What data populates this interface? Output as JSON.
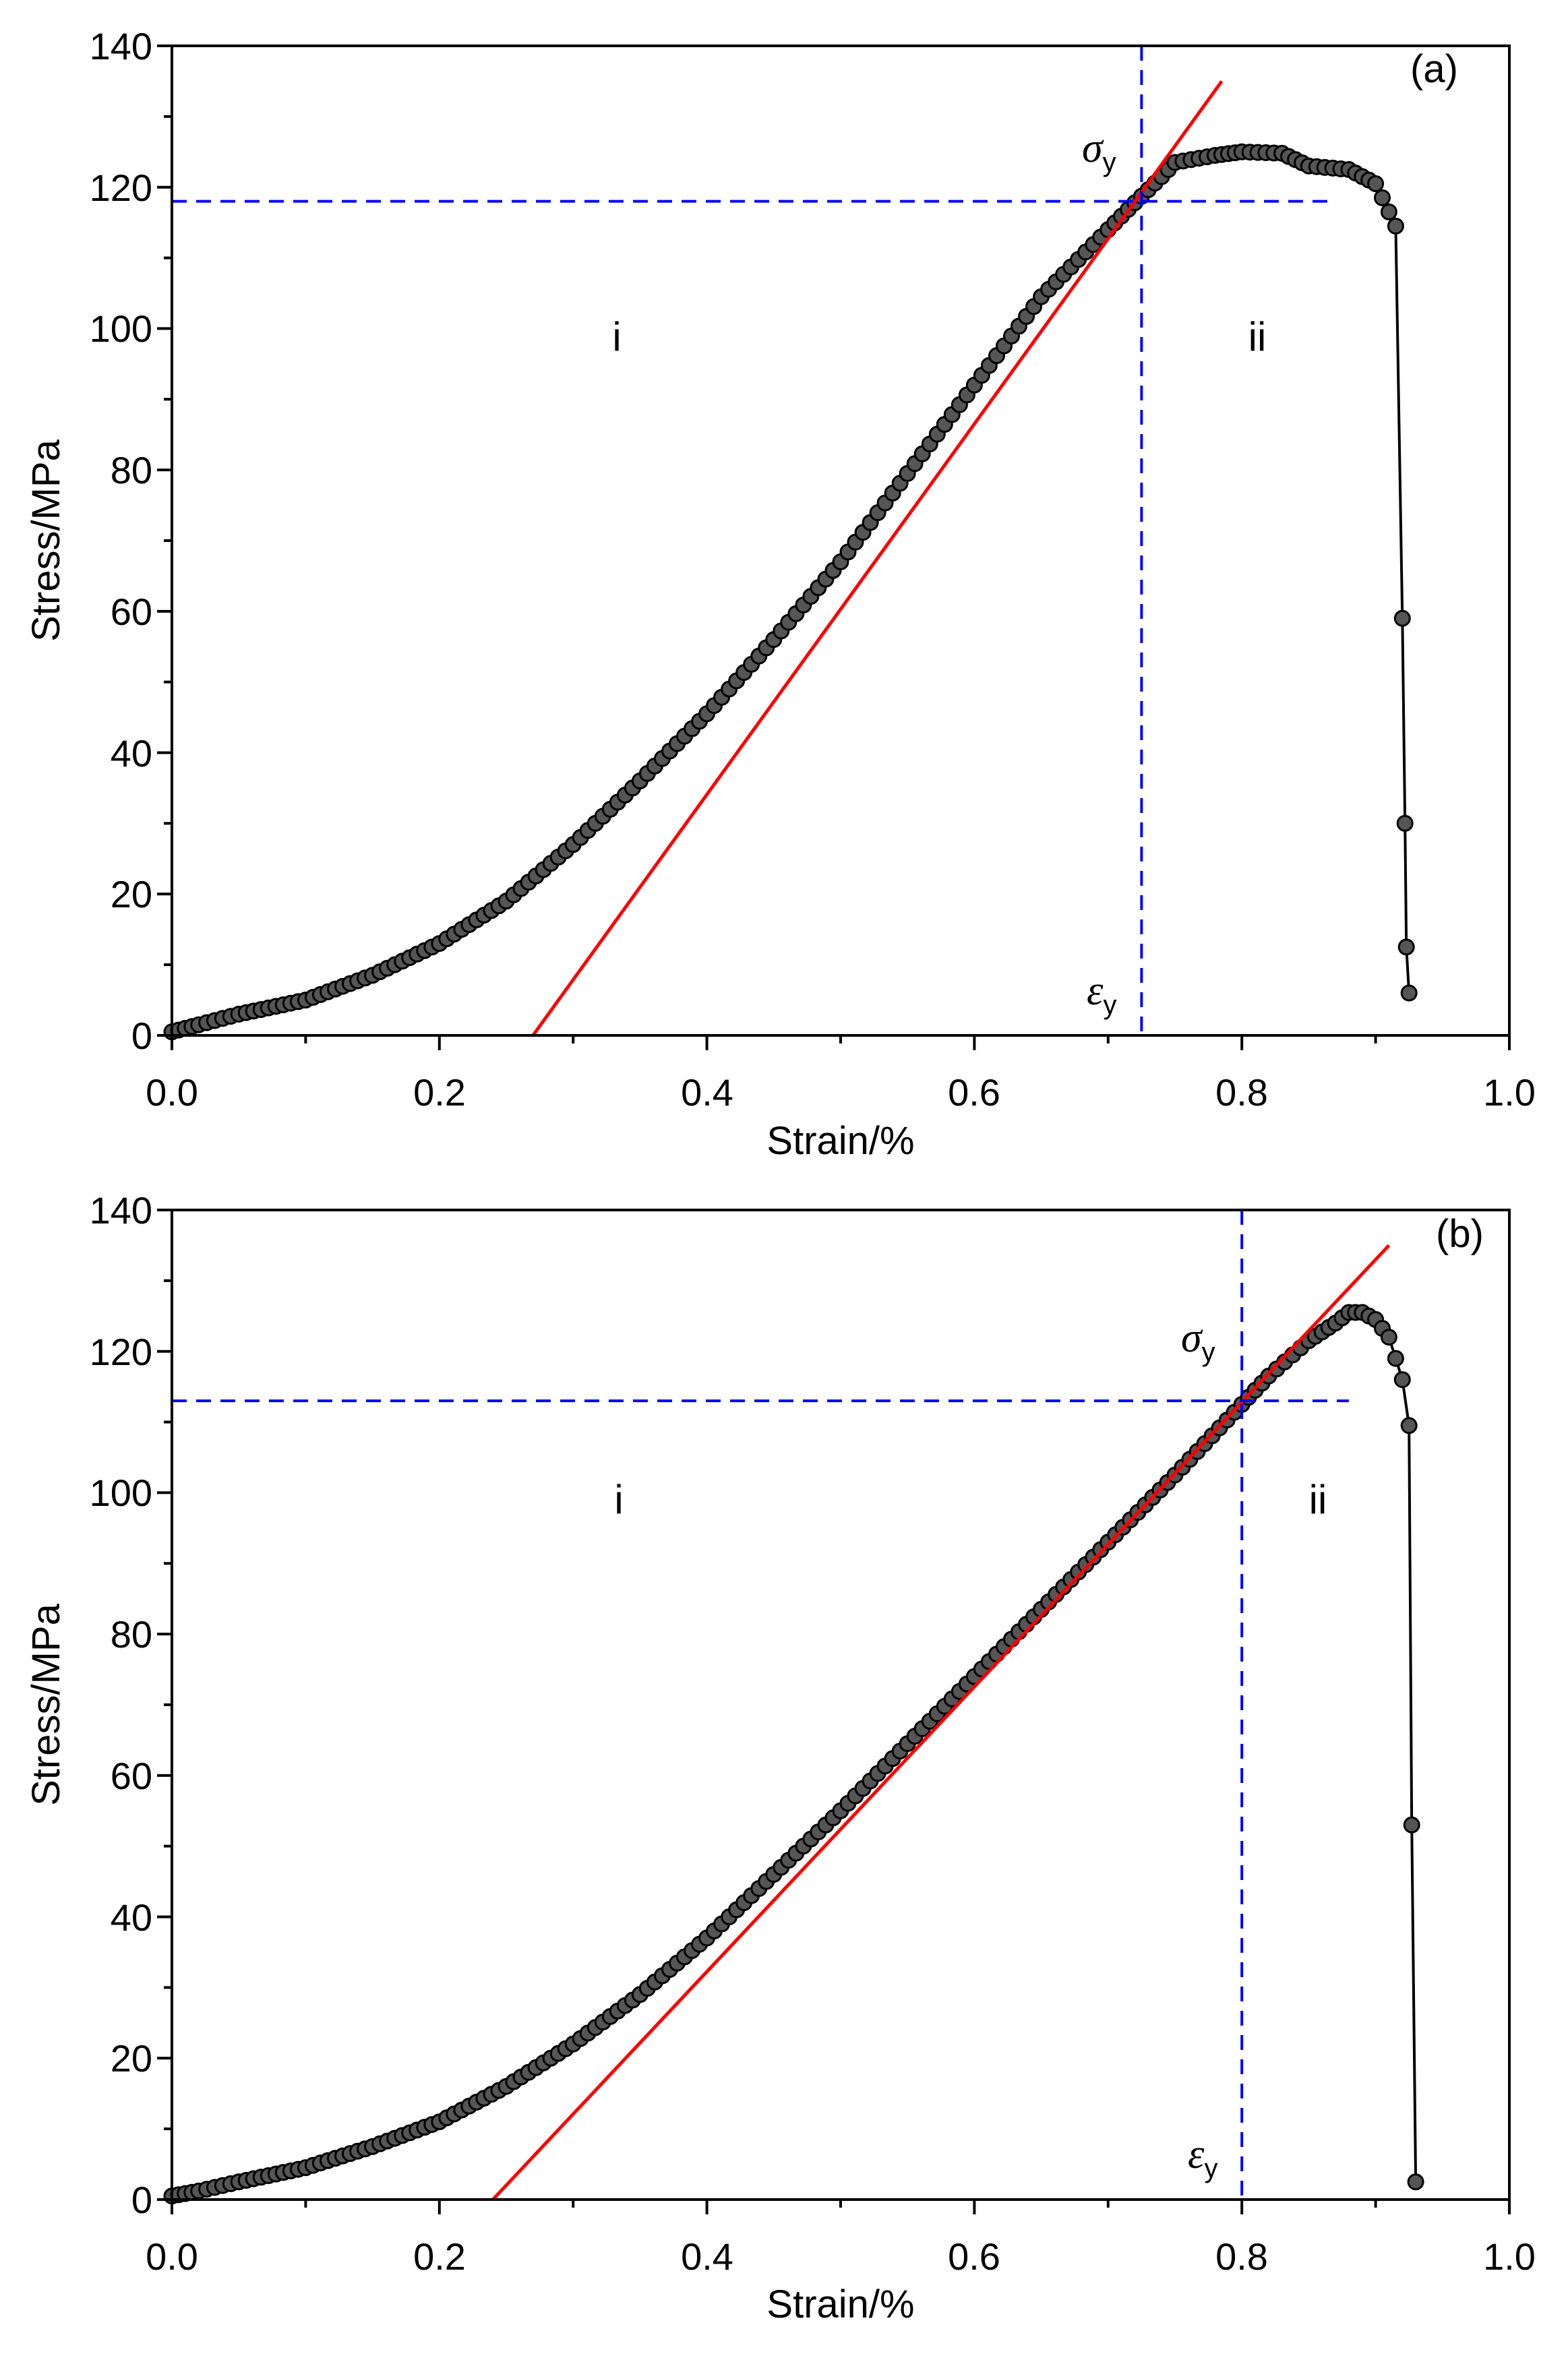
{
  "chart_data": [
    {
      "type": "scatter",
      "panel_label": "(a)",
      "xlabel": "Strain/%",
      "ylabel": "Stress/MPa",
      "xlim": [
        0,
        1.0
      ],
      "ylim": [
        0,
        140
      ],
      "x_ticks": [
        "0.0",
        "0.2",
        "0.4",
        "0.6",
        "0.8",
        "1.0"
      ],
      "y_ticks": [
        "0",
        "20",
        "40",
        "60",
        "80",
        "100",
        "120",
        "140"
      ],
      "series": [
        {
          "name": "stress-strain curve",
          "color": "#000000",
          "x": [
            0.0,
            0.02,
            0.05,
            0.1,
            0.15,
            0.2,
            0.25,
            0.3,
            0.35,
            0.4,
            0.45,
            0.5,
            0.55,
            0.6,
            0.65,
            0.7,
            0.72,
            0.74,
            0.75,
            0.78,
            0.8,
            0.83,
            0.85,
            0.88,
            0.9,
            0.915,
            0.92,
            0.922,
            0.923,
            0.925
          ],
          "y": [
            0.5,
            1.5,
            3.0,
            5.0,
            8.5,
            13.0,
            19.0,
            27.0,
            36.0,
            45.5,
            56.0,
            67.0,
            79.5,
            92.0,
            104.5,
            114.0,
            117.8,
            121.5,
            123.5,
            124.5,
            125.0,
            124.8,
            123.0,
            122.5,
            120.5,
            114.5,
            59.0,
            30.0,
            12.5,
            6.0
          ]
        }
      ],
      "fit_line": {
        "name": "linear fit",
        "color": "#ff0000",
        "x": [
          0.27,
          0.785
        ],
        "y": [
          0,
          135
        ]
      },
      "yield_strain": 0.725,
      "yield_stress": 118,
      "yield_extent_x": 0.87,
      "guide_color": "#0000ff",
      "annotations": {
        "sigma_symbol": "σ",
        "epsilon_symbol": "ε",
        "subscript": "y",
        "region_i": "i",
        "region_ii": "ii"
      }
    },
    {
      "type": "scatter",
      "panel_label": "(b)",
      "xlabel": "Strain/%",
      "ylabel": "Stress/MPa",
      "xlim": [
        0,
        1.0
      ],
      "ylim": [
        0,
        140
      ],
      "x_ticks": [
        "0.0",
        "0.2",
        "0.4",
        "0.6",
        "0.8",
        "1.0"
      ],
      "y_ticks": [
        "0",
        "20",
        "40",
        "60",
        "80",
        "100",
        "120",
        "140"
      ],
      "series": [
        {
          "name": "stress-strain curve",
          "color": "#000000",
          "x": [
            0.0,
            0.02,
            0.05,
            0.1,
            0.15,
            0.2,
            0.25,
            0.3,
            0.35,
            0.4,
            0.45,
            0.5,
            0.55,
            0.6,
            0.65,
            0.7,
            0.75,
            0.8,
            0.82,
            0.85,
            0.87,
            0.88,
            0.89,
            0.9,
            0.91,
            0.92,
            0.925,
            0.927,
            0.93
          ],
          "y": [
            0.5,
            1.2,
            2.5,
            4.5,
            7.5,
            11.0,
            16.0,
            22.0,
            29.0,
            37.0,
            46.0,
            55.0,
            64.5,
            74.0,
            83.5,
            93.0,
            102.5,
            112.5,
            116.5,
            121.5,
            124.0,
            125.5,
            125.5,
            124.5,
            122.0,
            116.0,
            109.5,
            53.0,
            2.5
          ]
        }
      ],
      "fit_line": {
        "name": "linear fit",
        "color": "#ff0000",
        "x": [
          0.24,
          0.91
        ],
        "y": [
          0,
          135
        ]
      },
      "yield_strain": 0.8,
      "yield_stress": 113,
      "yield_extent_x": 0.88,
      "guide_color": "#0000ff",
      "annotations": {
        "sigma_symbol": "σ",
        "epsilon_symbol": "ε",
        "subscript": "y",
        "region_i": "i",
        "region_ii": "ii"
      }
    }
  ]
}
